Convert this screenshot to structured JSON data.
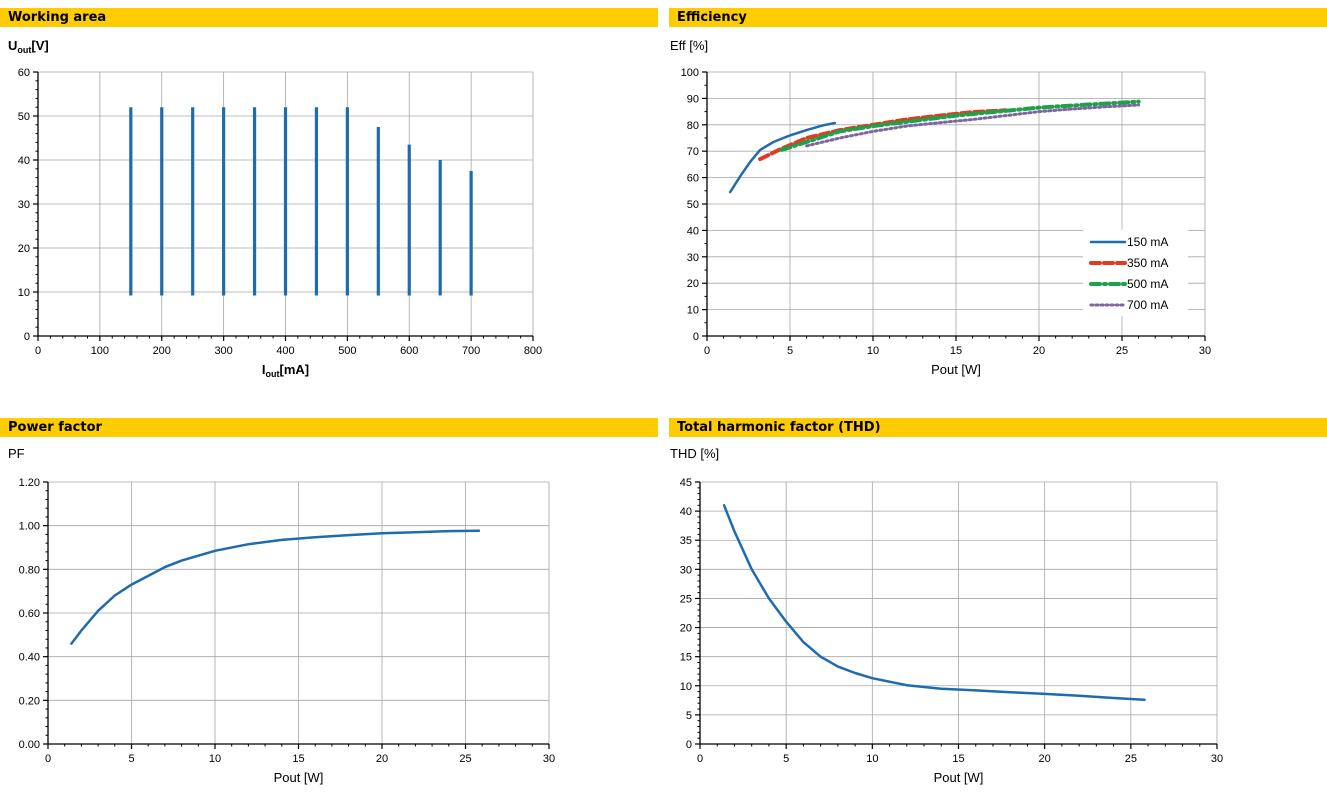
{
  "headers": [
    "Working area",
    "Efficiency",
    "Power factor",
    "Total harmonic factor (THD)"
  ],
  "chart_data": [
    {
      "type": "bar",
      "title": "Working area",
      "ylabel_main": "U",
      "ylabel_sub": "out",
      "ylabel_unit": "[V]",
      "xlabel_main": "I",
      "xlabel_sub": "out",
      "xlabel_unit": "[mA]",
      "xlim": [
        0,
        800
      ],
      "ylim": [
        0,
        60
      ],
      "xticks": [
        0,
        100,
        200,
        300,
        400,
        500,
        600,
        700,
        800
      ],
      "yticks": [
        0,
        10,
        20,
        30,
        40,
        50,
        60
      ],
      "grid": true,
      "color": "#1f6bb0",
      "ranges": [
        {
          "x": 150,
          "ymin": 9.2,
          "ymax": 52
        },
        {
          "x": 200,
          "ymin": 9.2,
          "ymax": 52
        },
        {
          "x": 250,
          "ymin": 9.2,
          "ymax": 52
        },
        {
          "x": 300,
          "ymin": 9.2,
          "ymax": 52
        },
        {
          "x": 350,
          "ymin": 9.2,
          "ymax": 52
        },
        {
          "x": 400,
          "ymin": 9.2,
          "ymax": 52
        },
        {
          "x": 450,
          "ymin": 9.2,
          "ymax": 52
        },
        {
          "x": 500,
          "ymin": 9.2,
          "ymax": 52
        },
        {
          "x": 550,
          "ymin": 9.2,
          "ymax": 47.5
        },
        {
          "x": 600,
          "ymin": 9.2,
          "ymax": 43.5
        },
        {
          "x": 650,
          "ymin": 9.2,
          "ymax": 40
        },
        {
          "x": 700,
          "ymin": 9.2,
          "ymax": 37.5
        }
      ]
    },
    {
      "type": "line",
      "title": "Efficiency",
      "ylabel": "Eff [%]",
      "xlabel": "Pout [W]",
      "xlim": [
        0,
        30
      ],
      "ylim": [
        0,
        100
      ],
      "xticks": [
        0,
        5,
        10,
        15,
        20,
        25,
        30
      ],
      "yticks": [
        0,
        10,
        20,
        30,
        40,
        50,
        60,
        70,
        80,
        90,
        100
      ],
      "grid": true,
      "legend": "bottom-right",
      "series": [
        {
          "name": "150 mA",
          "color": "#1f6bb0",
          "dash": "solid",
          "x": [
            1.4,
            2.0,
            2.6,
            3.2,
            4.0,
            5.0,
            6.0,
            7.0,
            7.7
          ],
          "y": [
            54.5,
            60.5,
            66,
            70.5,
            73.5,
            76,
            78,
            79.8,
            80.7
          ]
        },
        {
          "name": "350 mA",
          "color": "#e03c1f",
          "dash": "dashed",
          "x": [
            3.2,
            4.5,
            6,
            8,
            10,
            12,
            14,
            16,
            18
          ],
          "y": [
            67,
            71,
            75,
            78,
            80,
            82,
            83.5,
            84.8,
            85.5
          ]
        },
        {
          "name": "500 mA",
          "color": "#1fa04b",
          "dash": "dashdot",
          "x": [
            4.5,
            6,
            8,
            10,
            12.5,
            15,
            17.5,
            20,
            22.5,
            26
          ],
          "y": [
            70.5,
            73.5,
            77.5,
            79.5,
            81.5,
            83.5,
            85,
            86.5,
            87.5,
            88.8
          ]
        },
        {
          "name": "700 mA",
          "color": "#8064a2",
          "dash": "dotted",
          "x": [
            6,
            8,
            10,
            12,
            14,
            16,
            18,
            20,
            22,
            24,
            26
          ],
          "y": [
            72,
            75,
            77.5,
            79.5,
            80.8,
            82,
            83.5,
            85,
            86,
            86.8,
            87.5
          ]
        }
      ]
    },
    {
      "type": "line",
      "title": "Power factor",
      "ylabel": "PF",
      "xlabel": "Pout [W]",
      "xlim": [
        0,
        30
      ],
      "ylim": [
        0,
        1.2
      ],
      "xticks": [
        0,
        5,
        10,
        15,
        20,
        25,
        30
      ],
      "yticks": [
        "0.00",
        "0.20",
        "0.40",
        "0.60",
        "0.80",
        "1.00",
        "1.20"
      ],
      "grid": true,
      "series": [
        {
          "color": "#1f6bb0",
          "x": [
            1.4,
            2,
            3,
            4,
            5,
            6,
            7,
            8,
            10,
            12,
            14,
            16,
            18,
            20,
            22,
            24,
            25.8
          ],
          "y": [
            0.46,
            0.52,
            0.61,
            0.68,
            0.73,
            0.77,
            0.81,
            0.84,
            0.885,
            0.915,
            0.935,
            0.947,
            0.957,
            0.965,
            0.97,
            0.975,
            0.977
          ]
        }
      ]
    },
    {
      "type": "line",
      "title": "Total harmonic factor (THD)",
      "ylabel": "THD [%]",
      "xlabel": "Pout [W]",
      "xlim": [
        0,
        30
      ],
      "ylim": [
        0,
        45
      ],
      "xticks": [
        0,
        5,
        10,
        15,
        20,
        25,
        30
      ],
      "yticks": [
        0,
        5,
        10,
        15,
        20,
        25,
        30,
        35,
        40,
        45
      ],
      "grid": true,
      "series": [
        {
          "color": "#1f6bb0",
          "x": [
            1.4,
            2,
            3,
            4,
            5,
            6,
            7,
            8,
            9,
            10,
            12,
            14,
            16,
            18,
            20,
            22,
            24,
            25.8
          ],
          "y": [
            41,
            36.5,
            30,
            25,
            21,
            17.5,
            15,
            13.3,
            12.2,
            11.3,
            10.1,
            9.5,
            9.2,
            8.9,
            8.6,
            8.3,
            7.9,
            7.6
          ]
        }
      ]
    }
  ]
}
